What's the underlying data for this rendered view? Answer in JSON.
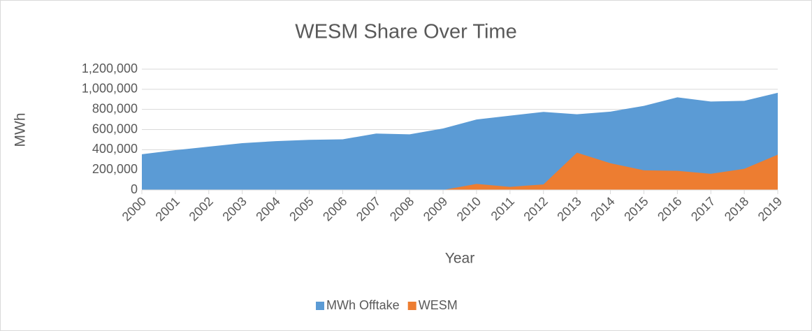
{
  "chart_data": {
    "type": "area",
    "title": "WESM Share Over Time",
    "x_label": "Year",
    "y_label": "MWh",
    "categories": [
      "2000",
      "2001",
      "2002",
      "2003",
      "2004",
      "2005",
      "2006",
      "2007",
      "2008",
      "2009",
      "2010",
      "2011",
      "2012",
      "2013",
      "2014",
      "2015",
      "2016",
      "2017",
      "2018",
      "2019"
    ],
    "series": [
      {
        "name": "MWh Offtake",
        "color": "#5b9bd5",
        "values": [
          355000,
          395000,
          430000,
          465000,
          485000,
          498000,
          503000,
          560000,
          552000,
          610000,
          700000,
          738000,
          775000,
          752000,
          778000,
          835000,
          920000,
          878000,
          885000,
          965000
        ]
      },
      {
        "name": "WESM",
        "color": "#ed7d31",
        "values": [
          null,
          null,
          null,
          null,
          null,
          null,
          null,
          null,
          null,
          0,
          60000,
          30000,
          55000,
          370000,
          265000,
          195000,
          190000,
          160000,
          210000,
          350000
        ]
      }
    ],
    "ylim": [
      0,
      1200000
    ],
    "yticks": [
      0,
      {
        "value": 200000,
        "label": "200,000"
      },
      {
        "value": 400000,
        "label": "400,000"
      },
      {
        "value": 600000,
        "label": "600,000"
      },
      {
        "value": 800000,
        "label": "800,000"
      },
      {
        "value": 1000000,
        "label": "1,000,000"
      },
      {
        "value": 1200000,
        "label": "1,200,000"
      }
    ],
    "grid": true,
    "legend": "bottom"
  }
}
